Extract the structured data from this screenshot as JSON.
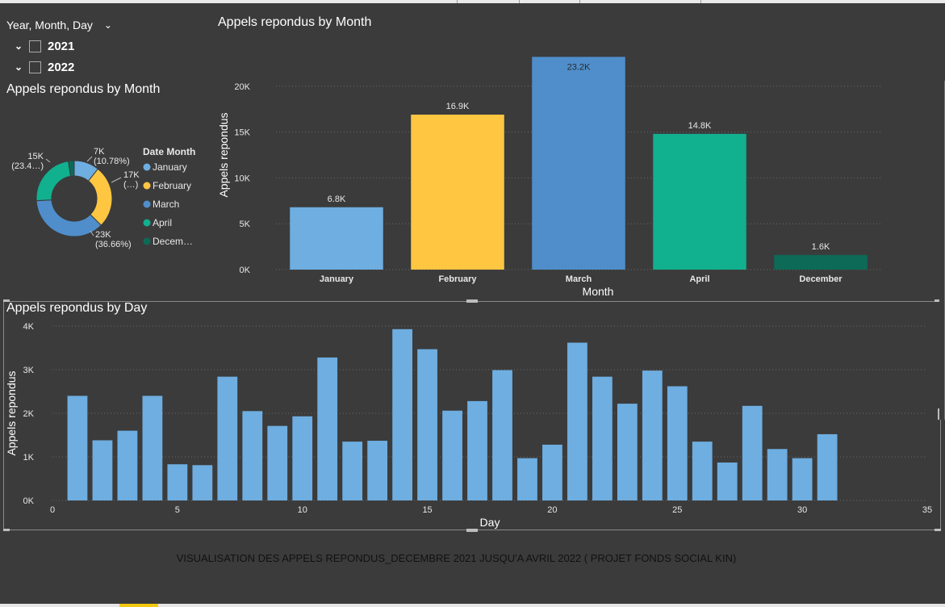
{
  "slicer": {
    "header": "Year, Month, Day",
    "years": [
      {
        "label": "2021",
        "checked": false
      },
      {
        "label": "2022",
        "checked": false
      }
    ]
  },
  "footer_text": "VISUALISATION DES APPELS REPONDUS_DECEMBRE 2021 JUSQU'A AVRIL 2022 ( PROJET FONDS SOCIAL KIN)",
  "colors": {
    "background": "#3b3b3b",
    "january": "#6eaee1",
    "february": "#ffc642",
    "march": "#4f8ecb",
    "april": "#11b08f",
    "december": "#0c6a57",
    "day_bar": "#6eaee1"
  },
  "chart_data": [
    {
      "type": "pie",
      "title": "Appels repondus by Month",
      "legend_title": "Date Month",
      "legend_position": "right",
      "categories": [
        "January",
        "February",
        "March",
        "April",
        "December"
      ],
      "values": [
        6800,
        16900,
        23200,
        14800,
        1600
      ],
      "data_labels": [
        {
          "category": "January",
          "value": "7K",
          "percent": "(10.78%)"
        },
        {
          "category": "February",
          "value": "17K",
          "percent": "(…)"
        },
        {
          "category": "March",
          "value": "23K",
          "percent": "(36.66%)"
        },
        {
          "category": "April",
          "value": "15K",
          "percent": "(23.4…)"
        }
      ],
      "legend_labels": [
        "January",
        "February",
        "March",
        "April",
        "Decem…"
      ]
    },
    {
      "type": "bar",
      "title": "Appels repondus by Month",
      "xlabel": "Month",
      "ylabel": "Appels repondus",
      "categories": [
        "January",
        "February",
        "March",
        "April",
        "December"
      ],
      "values": [
        6800,
        16900,
        23200,
        14800,
        1600
      ],
      "data_labels": [
        "6.8K",
        "16.9K",
        "23.2K",
        "14.8K",
        "1.6K"
      ],
      "ylim": [
        0,
        25000
      ],
      "yticks": [
        "0K",
        "5K",
        "10K",
        "15K",
        "20K"
      ],
      "grid": true
    },
    {
      "type": "bar",
      "title": "Appels repondus by Day",
      "xlabel": "Day",
      "ylabel": "Appels repondus",
      "x": [
        1,
        2,
        3,
        4,
        5,
        6,
        7,
        8,
        9,
        10,
        11,
        12,
        13,
        14,
        15,
        16,
        17,
        18,
        19,
        20,
        21,
        22,
        23,
        24,
        25,
        26,
        27,
        28,
        29,
        30,
        31
      ],
      "values": [
        2400,
        1380,
        1600,
        2400,
        830,
        810,
        2840,
        2050,
        1710,
        1930,
        3280,
        1350,
        1370,
        3930,
        3470,
        2060,
        2280,
        2990,
        970,
        1280,
        3620,
        2840,
        2220,
        2980,
        2620,
        1350,
        870,
        2170,
        1180,
        970,
        1520
      ],
      "xlim": [
        0,
        35
      ],
      "ylim": [
        0,
        4000
      ],
      "xticks": [
        "0",
        "5",
        "10",
        "15",
        "20",
        "25",
        "30",
        "35"
      ],
      "yticks": [
        "0K",
        "1K",
        "2K",
        "3K",
        "4K"
      ],
      "grid": true
    }
  ]
}
